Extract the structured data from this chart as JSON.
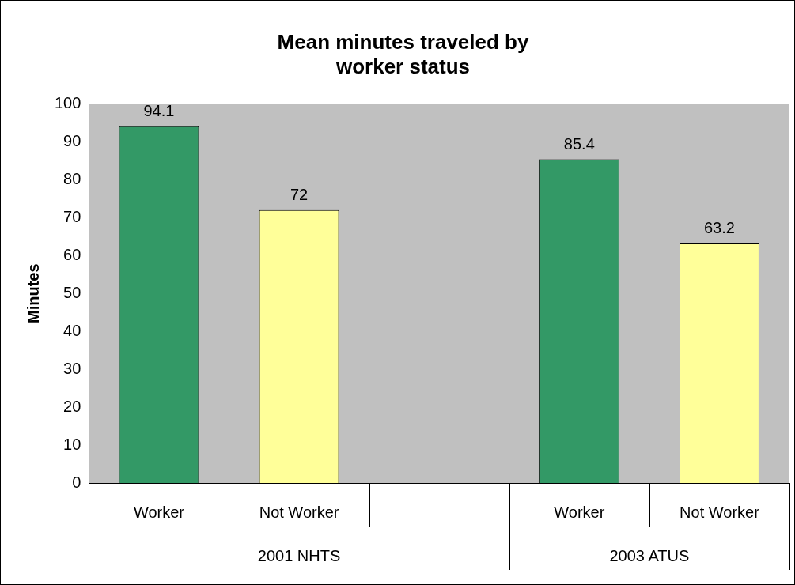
{
  "chart_data": {
    "type": "bar",
    "title": "Mean minutes traveled by worker status",
    "ylabel": "Minutes",
    "categories": [
      "Worker",
      "Not Worker",
      null,
      "Worker",
      "Not Worker"
    ],
    "values": [
      94.1,
      72,
      null,
      85.4,
      63.2
    ],
    "colors": [
      "#339966",
      "#ffff99",
      null,
      "#339966",
      "#ffff99"
    ],
    "ylim": [
      0,
      100
    ],
    "yticks": [
      0,
      10,
      20,
      30,
      40,
      50,
      60,
      70,
      80,
      90,
      100
    ],
    "data_labels": true,
    "grid": false,
    "legend": false,
    "annotations": [
      "2001 NHTS",
      "2003 ATUS"
    ]
  }
}
